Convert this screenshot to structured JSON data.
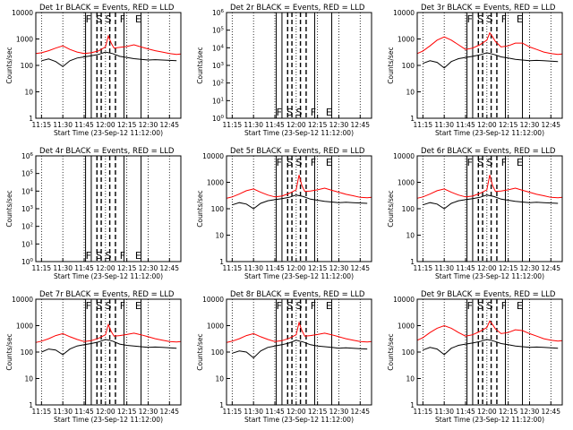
{
  "x_ticks": [
    "11:15",
    "11:30",
    "11:45",
    "12:00",
    "12:15",
    "12:30",
    "12:45"
  ],
  "x_tick_minutes": [
    15,
    30,
    45,
    60,
    75,
    90,
    105
  ],
  "x_range_minutes": [
    11,
    113
  ],
  "xlabel": "Start Time (23-Sep-12 11:12:00)",
  "ylabel": "Counts/sec",
  "vlines": {
    "solid_minutes": [
      46,
      50,
      73,
      85
    ],
    "dashed_minutes": [
      54,
      57,
      63,
      67
    ],
    "dotted_minutes": [
      15,
      30,
      45,
      60,
      75,
      90,
      105
    ]
  },
  "markers": [
    {
      "label": "F",
      "minute": 48
    },
    {
      "label": "S",
      "minute": 55.5
    },
    {
      "label": "S",
      "minute": 62
    },
    {
      "label": "F",
      "minute": 72
    },
    {
      "label": "E",
      "minute": 83
    }
  ],
  "colors": {
    "events": "#000000",
    "lld": "#ff0000",
    "frame": "#000000"
  },
  "chart_data": [
    {
      "type": "line",
      "title": "Det 1r BLACK = Events, RED = LLD",
      "scale": "log",
      "ylim": [
        1,
        10000
      ],
      "y_ticks": [
        "1",
        "10",
        "100",
        "1000",
        "10000"
      ],
      "marker_level": "top",
      "series": [
        {
          "name": "Events",
          "color": "#000000",
          "x": [
            15,
            20,
            25,
            30,
            35,
            40,
            45,
            50,
            55,
            60,
            65,
            70,
            75,
            80,
            85,
            90,
            95,
            100,
            105,
            110
          ],
          "y": [
            150,
            175,
            140,
            90,
            150,
            190,
            210,
            230,
            260,
            320,
            280,
            220,
            200,
            180,
            170,
            160,
            165,
            160,
            155,
            150
          ]
        },
        {
          "name": "LLD",
          "color": "#ff0000",
          "x": [
            11,
            15,
            20,
            25,
            30,
            35,
            40,
            45,
            50,
            55,
            60,
            62,
            64,
            66,
            70,
            75,
            80,
            85,
            90,
            95,
            100,
            105,
            110,
            113
          ],
          "y": [
            280,
            300,
            360,
            450,
            550,
            400,
            320,
            280,
            300,
            350,
            500,
            1300,
            700,
            450,
            480,
            520,
            600,
            500,
            420,
            360,
            320,
            280,
            260,
            270
          ]
        }
      ]
    },
    {
      "type": "line",
      "title": "Det 2r BLACK = Events, RED = LLD",
      "scale": "log",
      "ylim": [
        1,
        1000000
      ],
      "y_ticks": [
        "10^0",
        "10^1",
        "10^2",
        "10^3",
        "10^4",
        "10^5",
        "10^6"
      ],
      "marker_level": "bottom",
      "series": []
    },
    {
      "type": "line",
      "title": "Det 3r BLACK = Events, RED = LLD",
      "scale": "log",
      "ylim": [
        1,
        10000
      ],
      "y_ticks": [
        "1",
        "10",
        "100",
        "1000",
        "10000"
      ],
      "marker_level": "top",
      "series": [
        {
          "name": "Events",
          "color": "#000000",
          "x": [
            15,
            20,
            25,
            30,
            35,
            40,
            45,
            50,
            55,
            60,
            65,
            70,
            75,
            80,
            85,
            90,
            95,
            100,
            105,
            110
          ],
          "y": [
            120,
            150,
            130,
            80,
            140,
            180,
            200,
            220,
            250,
            300,
            260,
            210,
            190,
            170,
            160,
            150,
            155,
            150,
            145,
            140
          ]
        },
        {
          "name": "LLD",
          "color": "#ff0000",
          "x": [
            11,
            15,
            20,
            25,
            30,
            35,
            40,
            45,
            50,
            55,
            60,
            62,
            64,
            66,
            70,
            75,
            80,
            85,
            90,
            95,
            100,
            105,
            110,
            113
          ],
          "y": [
            280,
            350,
            550,
            900,
            1200,
            900,
            600,
            400,
            450,
            600,
            900,
            1700,
            1200,
            800,
            500,
            550,
            700,
            700,
            500,
            400,
            320,
            280,
            260,
            270
          ]
        }
      ]
    },
    {
      "type": "line",
      "title": "Det 4r BLACK = Events, RED = LLD",
      "scale": "log",
      "ylim": [
        1,
        1000000
      ],
      "y_ticks": [
        "10^0",
        "10^1",
        "10^2",
        "10^3",
        "10^4",
        "10^5",
        "10^6"
      ],
      "marker_level": "bottom",
      "series": []
    },
    {
      "type": "line",
      "title": "Det 5r BLACK = Events, RED = LLD",
      "scale": "log",
      "ylim": [
        1,
        10000
      ],
      "y_ticks": [
        "1",
        "10",
        "100",
        "1000",
        "10000"
      ],
      "marker_level": "top",
      "series": [
        {
          "name": "Events",
          "color": "#000000",
          "x": [
            15,
            20,
            25,
            30,
            35,
            40,
            45,
            50,
            55,
            60,
            65,
            70,
            75,
            80,
            85,
            90,
            95,
            100,
            105,
            110
          ],
          "y": [
            140,
            170,
            150,
            100,
            160,
            200,
            220,
            240,
            270,
            330,
            290,
            230,
            210,
            190,
            180,
            170,
            175,
            170,
            165,
            160
          ]
        },
        {
          "name": "LLD",
          "color": "#ff0000",
          "x": [
            11,
            15,
            20,
            25,
            30,
            35,
            40,
            45,
            50,
            55,
            60,
            62,
            64,
            66,
            70,
            75,
            80,
            85,
            90,
            95,
            100,
            105,
            110,
            113
          ],
          "y": [
            250,
            280,
            360,
            480,
            560,
            420,
            330,
            280,
            300,
            380,
            520,
            1900,
            750,
            450,
            470,
            520,
            600,
            500,
            420,
            350,
            310,
            270,
            260,
            270
          ]
        }
      ]
    },
    {
      "type": "line",
      "title": "Det 6r BLACK = Events, RED = LLD",
      "scale": "log",
      "ylim": [
        1,
        10000
      ],
      "y_ticks": [
        "1",
        "10",
        "100",
        "1000",
        "10000"
      ],
      "marker_level": "top",
      "series": [
        {
          "name": "Events",
          "color": "#000000",
          "x": [
            15,
            20,
            25,
            30,
            35,
            40,
            45,
            50,
            55,
            60,
            65,
            70,
            75,
            80,
            85,
            90,
            95,
            100,
            105,
            110
          ],
          "y": [
            140,
            170,
            150,
            100,
            160,
            200,
            220,
            240,
            270,
            330,
            290,
            230,
            210,
            190,
            180,
            170,
            175,
            170,
            165,
            160
          ]
        },
        {
          "name": "LLD",
          "color": "#ff0000",
          "x": [
            11,
            15,
            20,
            25,
            30,
            35,
            40,
            45,
            50,
            55,
            60,
            62,
            64,
            66,
            70,
            75,
            80,
            85,
            90,
            95,
            100,
            105,
            110,
            113
          ],
          "y": [
            250,
            280,
            360,
            480,
            560,
            420,
            330,
            280,
            300,
            380,
            520,
            1900,
            750,
            450,
            470,
            520,
            600,
            500,
            420,
            350,
            310,
            270,
            260,
            270
          ]
        }
      ]
    },
    {
      "type": "line",
      "title": "Det 7r BLACK = Events, RED = LLD",
      "scale": "log",
      "ylim": [
        1,
        10000
      ],
      "y_ticks": [
        "1",
        "10",
        "100",
        "1000",
        "10000"
      ],
      "marker_level": "top",
      "series": [
        {
          "name": "Events",
          "color": "#000000",
          "x": [
            15,
            20,
            25,
            30,
            35,
            40,
            45,
            50,
            55,
            60,
            65,
            70,
            75,
            80,
            85,
            90,
            95,
            100,
            105,
            110
          ],
          "y": [
            100,
            130,
            120,
            80,
            130,
            170,
            190,
            210,
            240,
            300,
            260,
            200,
            180,
            170,
            160,
            150,
            155,
            150,
            145,
            140
          ]
        },
        {
          "name": "LLD",
          "color": "#ff0000",
          "x": [
            11,
            15,
            20,
            25,
            30,
            35,
            40,
            45,
            50,
            55,
            60,
            62,
            64,
            66,
            70,
            75,
            80,
            85,
            90,
            95,
            100,
            105,
            110,
            113
          ],
          "y": [
            230,
            260,
            320,
            420,
            500,
            380,
            300,
            250,
            270,
            330,
            450,
            1100,
            600,
            400,
            420,
            460,
            520,
            450,
            380,
            320,
            280,
            250,
            240,
            250
          ]
        }
      ]
    },
    {
      "type": "line",
      "title": "Det 8r BLACK = Events, RED = LLD",
      "scale": "log",
      "ylim": [
        1,
        10000
      ],
      "y_ticks": [
        "1",
        "10",
        "100",
        "1000",
        "10000"
      ],
      "marker_level": "top",
      "series": [
        {
          "name": "Events",
          "color": "#000000",
          "x": [
            15,
            20,
            25,
            30,
            35,
            40,
            45,
            50,
            55,
            60,
            65,
            70,
            75,
            80,
            85,
            90,
            95,
            100,
            105,
            110
          ],
          "y": [
            90,
            110,
            100,
            60,
            110,
            150,
            170,
            190,
            220,
            280,
            240,
            190,
            170,
            160,
            150,
            140,
            145,
            140,
            135,
            130
          ]
        },
        {
          "name": "LLD",
          "color": "#ff0000",
          "x": [
            11,
            15,
            20,
            25,
            30,
            35,
            40,
            45,
            50,
            55,
            60,
            62,
            64,
            66,
            70,
            75,
            80,
            85,
            90,
            95,
            100,
            105,
            110,
            113
          ],
          "y": [
            230,
            260,
            320,
            420,
            500,
            380,
            300,
            250,
            270,
            330,
            450,
            1300,
            650,
            400,
            420,
            460,
            520,
            450,
            380,
            320,
            280,
            250,
            240,
            250
          ]
        }
      ]
    },
    {
      "type": "line",
      "title": "Det 9r BLACK = Events, RED = LLD",
      "scale": "log",
      "ylim": [
        1,
        10000
      ],
      "y_ticks": [
        "1",
        "10",
        "100",
        "1000",
        "10000"
      ],
      "marker_level": "top",
      "series": [
        {
          "name": "Events",
          "color": "#000000",
          "x": [
            15,
            20,
            25,
            30,
            35,
            40,
            45,
            50,
            55,
            60,
            65,
            70,
            75,
            80,
            85,
            90,
            95,
            100,
            105,
            110
          ],
          "y": [
            120,
            150,
            130,
            80,
            140,
            180,
            200,
            220,
            250,
            300,
            260,
            210,
            190,
            170,
            160,
            150,
            155,
            150,
            145,
            140
          ]
        },
        {
          "name": "LLD",
          "color": "#ff0000",
          "x": [
            11,
            15,
            20,
            25,
            30,
            35,
            40,
            45,
            50,
            55,
            60,
            62,
            64,
            66,
            70,
            75,
            80,
            85,
            90,
            95,
            100,
            105,
            110,
            113
          ],
          "y": [
            280,
            350,
            550,
            800,
            1000,
            800,
            550,
            400,
            450,
            600,
            850,
            1500,
            1100,
            750,
            500,
            550,
            700,
            650,
            500,
            400,
            320,
            280,
            260,
            270
          ]
        }
      ]
    }
  ]
}
